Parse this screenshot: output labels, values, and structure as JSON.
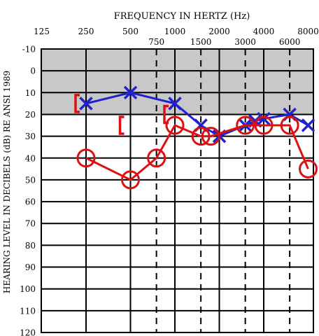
{
  "chart_data": {
    "type": "line",
    "title": "FREQUENCY IN HERTZ (Hz)",
    "xlabel": "FREQUENCY IN HERTZ (Hz)",
    "ylabel": "HEARING LEVEL IN DECIBELS (dB) RE ANSI 1989",
    "x_scale": "log2",
    "xlim": [
      125,
      8000
    ],
    "ylim": [
      -10,
      120
    ],
    "y_inverted": true,
    "grid": true,
    "shaded_band": {
      "from": -10,
      "to": 20,
      "color": "#c8c8c8"
    },
    "octave_ticks": [
      {
        "freq": 125,
        "label": "125"
      },
      {
        "freq": 250,
        "label": "250"
      },
      {
        "freq": 500,
        "label": "500"
      },
      {
        "freq": 1000,
        "label": "1000"
      },
      {
        "freq": 2000,
        "label": "2000"
      },
      {
        "freq": 4000,
        "label": "4000"
      },
      {
        "freq": 8000,
        "label": "8000"
      }
    ],
    "interoctave_ticks": [
      {
        "freq": 750,
        "label": "750"
      },
      {
        "freq": 1500,
        "label": "1500"
      },
      {
        "freq": 3000,
        "label": "3000"
      },
      {
        "freq": 6000,
        "label": "6000"
      }
    ],
    "y_ticks": [
      "-10",
      "0",
      "10",
      "20",
      "30",
      "40",
      "50",
      "60",
      "70",
      "80",
      "90",
      "100",
      "110",
      "120"
    ],
    "series": [
      {
        "marker": "X",
        "color": "#2222cc",
        "x": [
          250,
          500,
          1000,
          1500,
          2000,
          3000,
          3500,
          4000,
          6000,
          8000
        ],
        "y": [
          15,
          10,
          15,
          25,
          30,
          25,
          23,
          22,
          20,
          25
        ]
      },
      {
        "marker": "O",
        "color": "#dd1111",
        "x": [
          250,
          500,
          750,
          1000,
          1500,
          1750,
          3000,
          4000,
          6000,
          8000
        ],
        "y": [
          40,
          50,
          40,
          25,
          30,
          30,
          25,
          25,
          25,
          45
        ]
      }
    ],
    "bone_conduction": [
      {
        "marker": "[",
        "color": "#dd1111",
        "x": 250,
        "y": 15
      },
      {
        "marker": "[",
        "color": "#dd1111",
        "x": 500,
        "y": 25
      },
      {
        "marker": "[",
        "color": "#dd1111",
        "x": 1000,
        "y": 20
      }
    ]
  }
}
